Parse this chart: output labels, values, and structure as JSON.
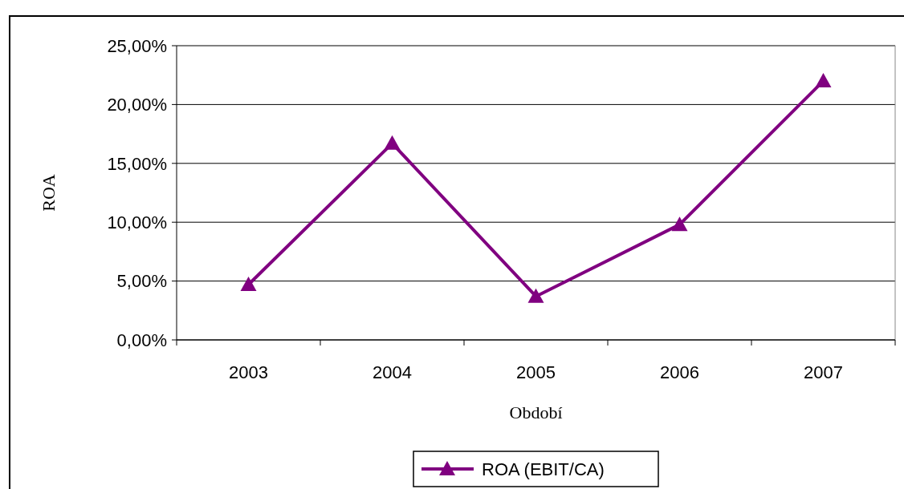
{
  "chart_data": {
    "type": "line",
    "xlabel": "Období",
    "ylabel": "ROA",
    "categories": [
      "2003",
      "2004",
      "2005",
      "2006",
      "2007"
    ],
    "series": [
      {
        "name": "ROA (EBIT/CA)",
        "color": "#800080",
        "values": [
          4.7,
          16.7,
          3.7,
          9.8,
          22.0
        ]
      }
    ],
    "ylim": [
      0,
      25
    ],
    "yticks": [
      {
        "value": 0,
        "label": "0,00%"
      },
      {
        "value": 5,
        "label": "5,00%"
      },
      {
        "value": 10,
        "label": "10,00%"
      },
      {
        "value": 15,
        "label": "15,00%"
      },
      {
        "value": 20,
        "label": "20,00%"
      },
      {
        "value": 25,
        "label": "25,00%"
      }
    ],
    "grid": "y",
    "legend": "bottom",
    "marker": "triangle",
    "line_style": "solid"
  }
}
